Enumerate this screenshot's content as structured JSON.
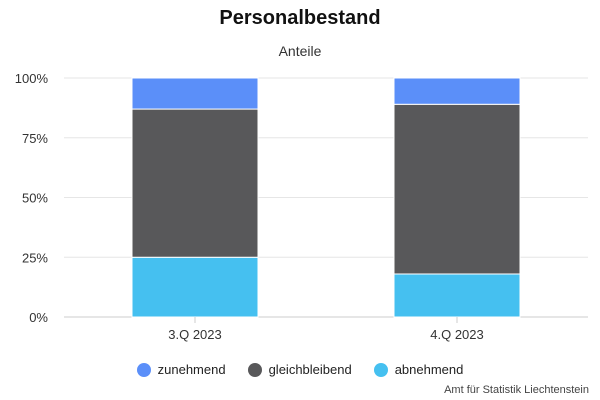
{
  "chart_data": {
    "type": "bar",
    "stacked": true,
    "title": "Personalbestand",
    "subtitle": "Anteile",
    "categories": [
      "3.Q 2023",
      "4.Q 2023"
    ],
    "series": [
      {
        "name": "zunehmend",
        "color": "#5b8ff9",
        "values": [
          13,
          11
        ]
      },
      {
        "name": "gleichbleibend",
        "color": "#58585a",
        "values": [
          62,
          71
        ]
      },
      {
        "name": "abnehmend",
        "color": "#45c0f0",
        "values": [
          25,
          18
        ]
      }
    ],
    "ylim": [
      0,
      100
    ],
    "yticks": [
      "0%",
      "25%",
      "50%",
      "75%",
      "100%"
    ],
    "grid": true,
    "legend_position": "bottom-center"
  },
  "credits": "Amt für Statistik Liechtenstein"
}
